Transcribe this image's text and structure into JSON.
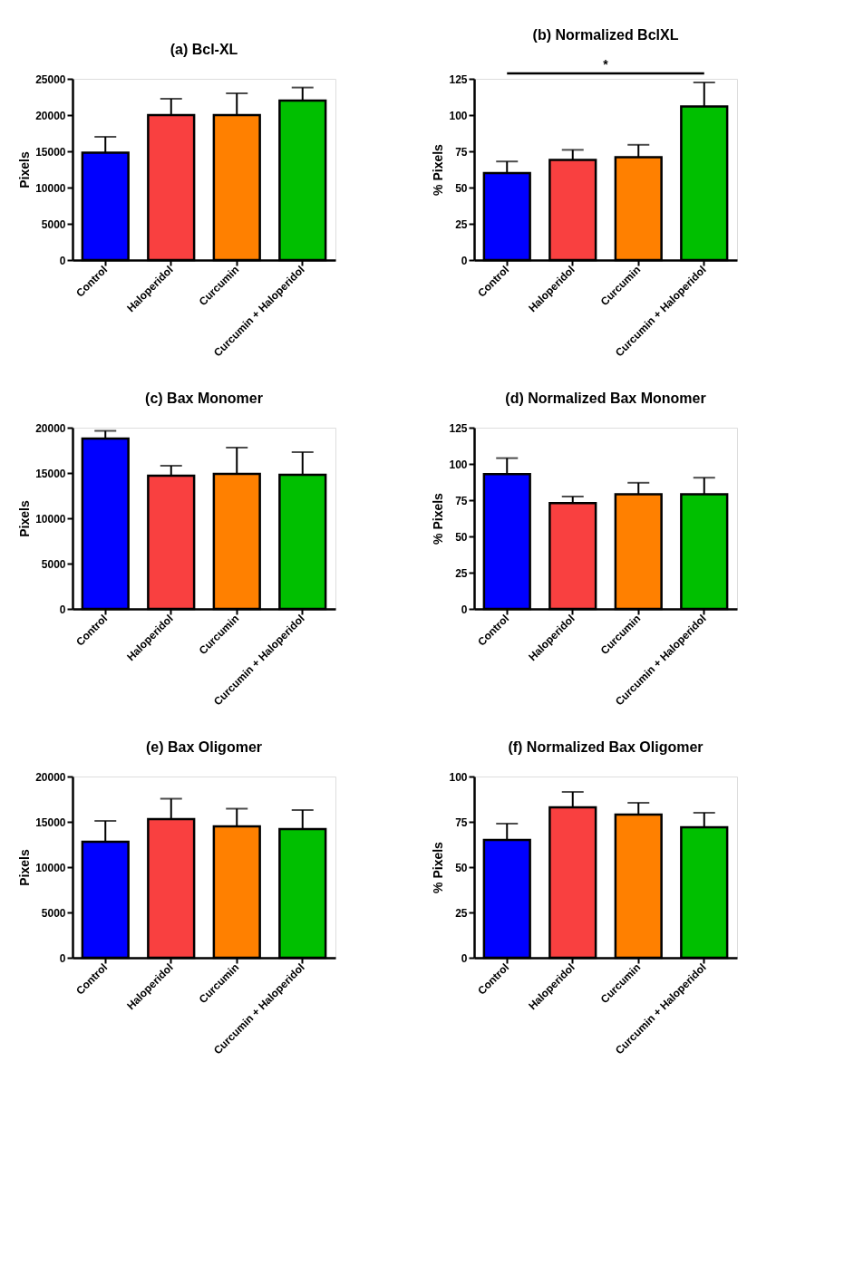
{
  "chart_data": [
    {
      "type": "bar",
      "title": "(a) Bcl-XL",
      "ylabel": "Pixels",
      "categories": [
        "Control",
        "Haloperidol",
        "Curcumin",
        "Curcumin + Haloperidol"
      ],
      "values": [
        14800,
        20000,
        20000,
        22000
      ],
      "colors": [
        "#0000ff",
        "#f94040",
        "#ff8000",
        "#00bf00"
      ],
      "errors": [
        [
          14800,
          17000
        ],
        [
          20000,
          22250
        ],
        [
          20000,
          23000
        ],
        [
          22000,
          23800
        ]
      ],
      "ylim": [
        0,
        25000
      ],
      "yticks": [
        0,
        5000,
        10000,
        15000,
        20000,
        25000
      ],
      "grid": false
    },
    {
      "type": "bar",
      "title": "(b) Normalized BclXL",
      "ylabel": "% Pixels",
      "categories": [
        "Control",
        "Haloperidol",
        "Curcumin",
        "Curcumin + Haloperidol"
      ],
      "values": [
        60,
        69,
        71,
        106
      ],
      "colors": [
        "#0000ff",
        "#f94040",
        "#ff8000",
        "#00bf00"
      ],
      "errors": [
        [
          60,
          68
        ],
        [
          69,
          76
        ],
        [
          71,
          79.5
        ],
        [
          106,
          122.5
        ]
      ],
      "ylim": [
        0,
        125
      ],
      "yticks": [
        0,
        25,
        50,
        75,
        100,
        125
      ],
      "grid": false,
      "annotations": [
        "*"
      ]
    },
    {
      "type": "bar",
      "title": "(c) Bax Monomer",
      "ylabel": "Pixels",
      "categories": [
        "Control",
        "Haloperidol",
        "Curcumin",
        "Curcumin + Haloperidol"
      ],
      "values": [
        18800,
        14700,
        14900,
        14800
      ],
      "colors": [
        "#0000ff",
        "#f94040",
        "#ff8000",
        "#00bf00"
      ],
      "errors": [
        [
          18800,
          19650
        ],
        [
          14700,
          15800
        ],
        [
          14900,
          17800
        ],
        [
          14800,
          17300
        ]
      ],
      "ylim": [
        0,
        20000
      ],
      "yticks": [
        0,
        5000,
        10000,
        15000,
        20000
      ],
      "grid": false
    },
    {
      "type": "bar",
      "title": "(d) Normalized Bax Monomer",
      "ylabel": "% Pixels",
      "categories": [
        "Control",
        "Haloperidol",
        "Curcumin",
        "Curcumin + Haloperidol"
      ],
      "values": [
        93,
        73,
        79,
        79
      ],
      "colors": [
        "#0000ff",
        "#f94040",
        "#ff8000",
        "#00bf00"
      ],
      "errors": [
        [
          93,
          104
        ],
        [
          73,
          77.5
        ],
        [
          79,
          87
        ],
        [
          79,
          90.5
        ]
      ],
      "ylim": [
        0,
        125
      ],
      "yticks": [
        0,
        25,
        50,
        75,
        100,
        125
      ],
      "grid": false
    },
    {
      "type": "bar",
      "title": "(e) Bax Oligomer",
      "ylabel": "Pixels",
      "categories": [
        "Control",
        "Haloperidol",
        "Curcumin",
        "Curcumin + Haloperidol"
      ],
      "values": [
        12800,
        15300,
        14500,
        14200
      ],
      "colors": [
        "#0000ff",
        "#f94040",
        "#ff8000",
        "#00bf00"
      ],
      "errors": [
        [
          12800,
          15100
        ],
        [
          15300,
          17550
        ],
        [
          14500,
          16450
        ],
        [
          14200,
          16300
        ]
      ],
      "ylim": [
        0,
        20000
      ],
      "yticks": [
        0,
        5000,
        10000,
        15000,
        20000
      ],
      "grid": false
    },
    {
      "type": "bar",
      "title": "(f) Normalized Bax Oligomer",
      "ylabel": "% Pixels",
      "categories": [
        "Control",
        "Haloperidol",
        "Curcumin",
        "Curcumin + Haloperidol"
      ],
      "values": [
        65,
        83,
        79,
        72
      ],
      "colors": [
        "#0000ff",
        "#f94040",
        "#ff8000",
        "#00bf00"
      ],
      "errors": [
        [
          65,
          74
        ],
        [
          83,
          91.5
        ],
        [
          79,
          85.5
        ],
        [
          72,
          80
        ]
      ],
      "ylim": [
        0,
        100
      ],
      "yticks": [
        0,
        25,
        50,
        75,
        100
      ],
      "grid": false
    }
  ]
}
